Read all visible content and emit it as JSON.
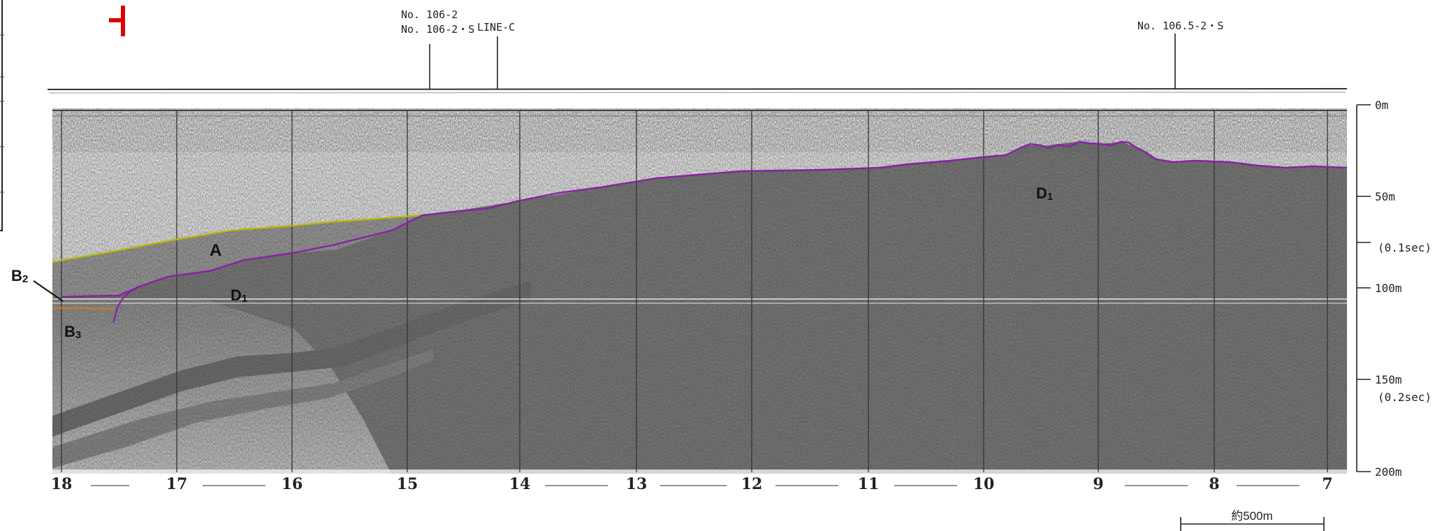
{
  "direction_mark_color": "#e00000",
  "top_markers": [
    {
      "lines": [
        "No. 106-2",
        "No. 106-2・S"
      ]
    },
    {
      "lines": [
        "LINE-C"
      ]
    },
    {
      "lines": [
        "No. 106.5-2・S"
      ]
    }
  ],
  "depth_scale": [
    {
      "label": "0m"
    },
    {
      "label": "50m"
    },
    {
      "label": "(0.1sec)"
    },
    {
      "label": "100m"
    },
    {
      "label": "150m"
    },
    {
      "label": "(0.2sec)"
    },
    {
      "label": "200m"
    }
  ],
  "shot_points": [
    "18",
    "17",
    "16",
    "15",
    "14",
    "13",
    "12",
    "11",
    "10",
    "9",
    "8",
    "7"
  ],
  "layer_labels": {
    "a": "A",
    "b2": "B",
    "b2_sub": "2",
    "b3": "B",
    "b3_sub": "3",
    "d1_left": "D",
    "d1_left_sub": "1",
    "d1_right": "D",
    "d1_right_sub": "1"
  },
  "horizon_colors": {
    "A_top": "#b8b800",
    "D1": "#8a1fa8",
    "B3": "#d07a20"
  },
  "scale_bar_label": "約500m"
}
